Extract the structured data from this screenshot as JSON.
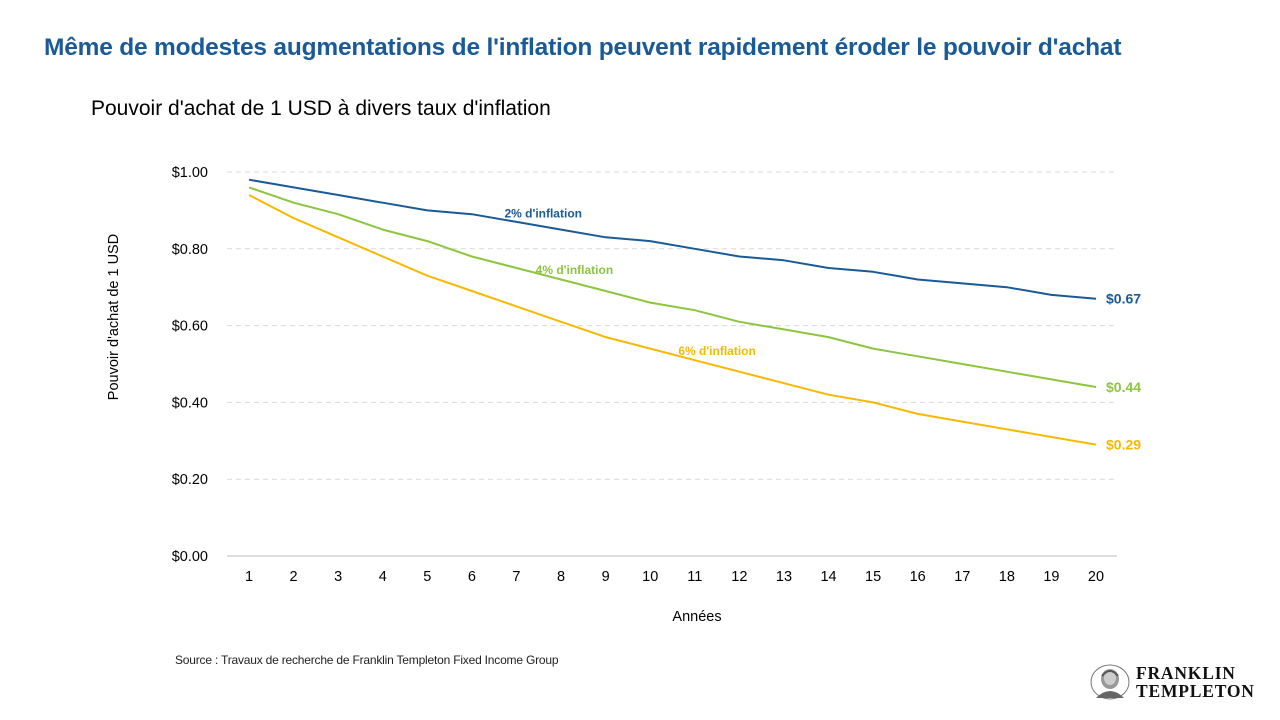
{
  "title": "Même de modestes augmentations de l'inflation peuvent rapidement éroder le pouvoir d'achat",
  "source": "Source : Travaux de recherche de Franklin Templeton Fixed Income Group",
  "logo": {
    "line1": "FRANKLIN",
    "line2": "TEMPLETON",
    "icon": "franklin-portrait-icon"
  },
  "colors": {
    "title": "#1a5a96",
    "grid": "#d9d9d9",
    "axis": "#bfbfbf"
  },
  "chart_data": {
    "type": "line",
    "title": "Pouvoir d'achat de 1 USD à divers taux d'inflation",
    "xlabel": "Années",
    "ylabel": "Pouvoir d'achat de 1 USD",
    "x": [
      1,
      2,
      3,
      4,
      5,
      6,
      7,
      8,
      9,
      10,
      11,
      12,
      13,
      14,
      15,
      16,
      17,
      18,
      19,
      20
    ],
    "ylim": [
      0,
      1
    ],
    "yticks": [
      0,
      0.2,
      0.4,
      0.6,
      0.8,
      1.0
    ],
    "ytick_labels": [
      "$0.00",
      "$0.20",
      "$0.40",
      "$0.60",
      "$0.80",
      "$1.00"
    ],
    "grid": true,
    "series": [
      {
        "name": "2% d'inflation",
        "color": "#1a5a96",
        "end_label": "$0.67",
        "values": [
          0.98,
          0.96,
          0.94,
          0.92,
          0.9,
          0.89,
          0.87,
          0.85,
          0.83,
          0.82,
          0.8,
          0.78,
          0.77,
          0.75,
          0.74,
          0.72,
          0.71,
          0.7,
          0.68,
          0.67
        ]
      },
      {
        "name": "4% d'inflation",
        "color": "#8cc63f",
        "end_label": "$0.44",
        "values": [
          0.96,
          0.92,
          0.89,
          0.85,
          0.82,
          0.78,
          0.75,
          0.72,
          0.69,
          0.66,
          0.64,
          0.61,
          0.59,
          0.57,
          0.54,
          0.52,
          0.5,
          0.48,
          0.46,
          0.44
        ]
      },
      {
        "name": "6% d'inflation",
        "color": "#f7b900",
        "end_label": "$0.29",
        "values": [
          0.94,
          0.88,
          0.83,
          0.78,
          0.73,
          0.69,
          0.65,
          0.61,
          0.57,
          0.54,
          0.51,
          0.48,
          0.45,
          0.42,
          0.4,
          0.37,
          0.35,
          0.33,
          0.31,
          0.29
        ]
      }
    ]
  }
}
